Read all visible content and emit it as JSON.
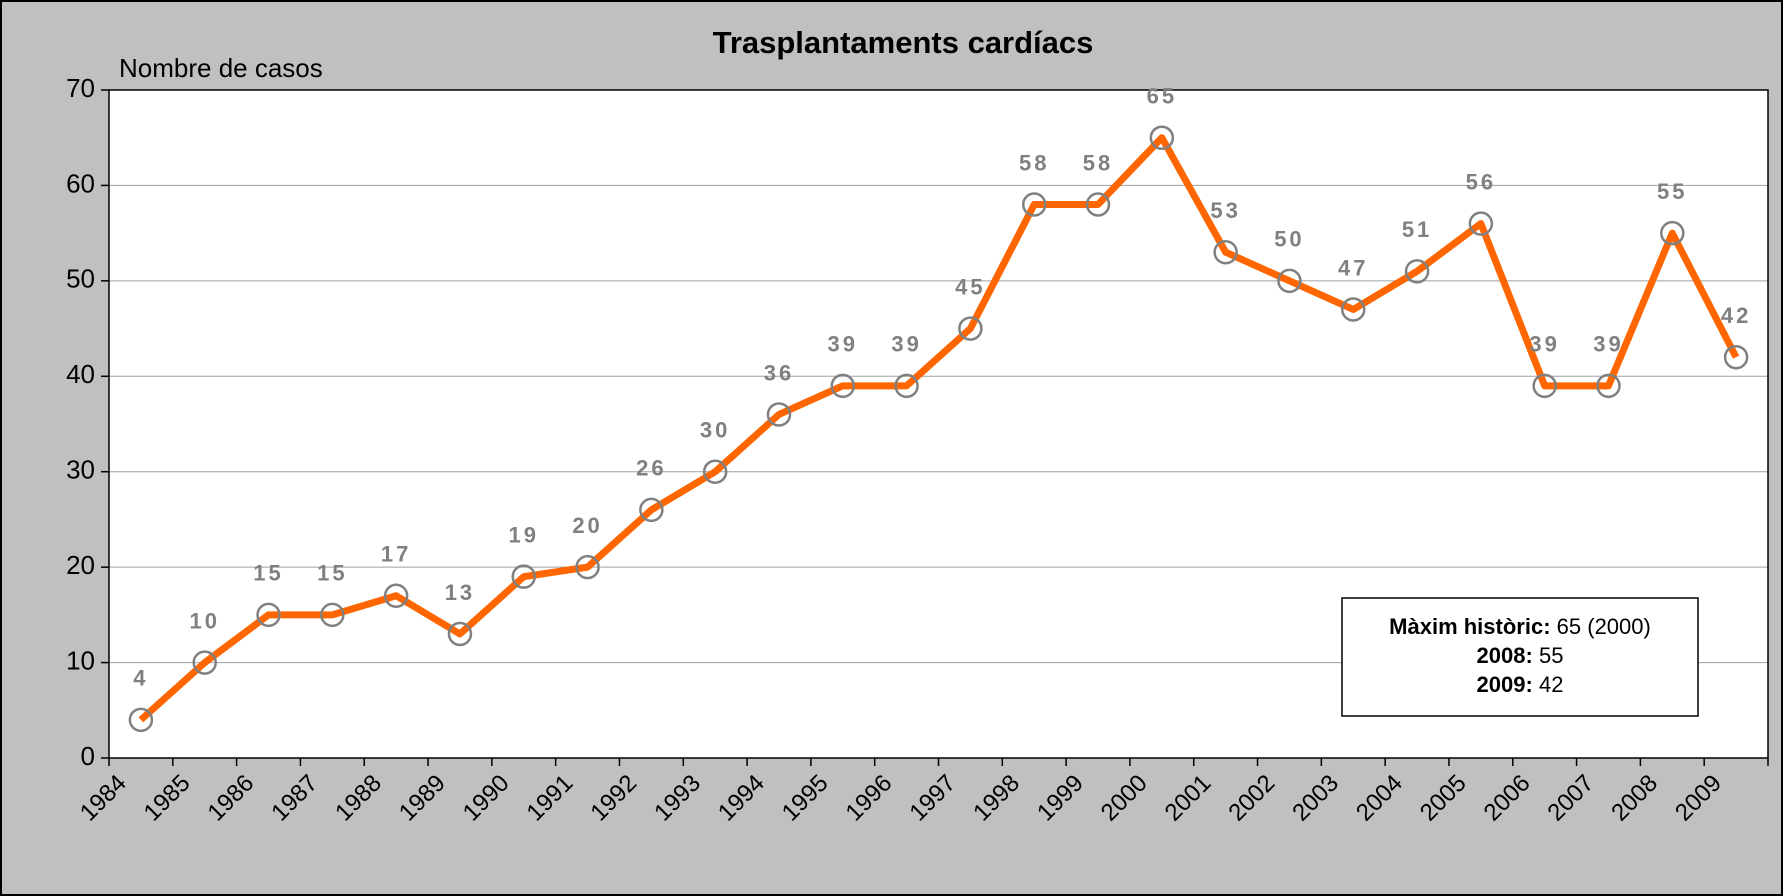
{
  "chart_data": {
    "type": "line",
    "title": "Trasplantaments cardíacs",
    "y_label": "Nombre de casos",
    "categories": [
      "1984",
      "1985",
      "1986",
      "1987",
      "1988",
      "1989",
      "1990",
      "1991",
      "1992",
      "1993",
      "1994",
      "1995",
      "1996",
      "1997",
      "1998",
      "1999",
      "2000",
      "2001",
      "2002",
      "2003",
      "2004",
      "2005",
      "2006",
      "2007",
      "2008",
      "2009"
    ],
    "values": [
      4,
      10,
      15,
      15,
      17,
      13,
      19,
      20,
      26,
      30,
      36,
      39,
      39,
      45,
      58,
      58,
      65,
      53,
      50,
      47,
      51,
      56,
      39,
      39,
      55,
      42
    ],
    "color": "#ff6600",
    "marker_color": "#808080",
    "ylim": [
      0,
      70
    ],
    "yticks": [
      0,
      10,
      20,
      30,
      40,
      50,
      60,
      70
    ],
    "grid": true,
    "annotation": [
      {
        "label": "Màxim històric:",
        "text": "65 (2000)"
      },
      {
        "label": "2008:",
        "text": "55"
      },
      {
        "label": "2009:",
        "text": "42"
      }
    ]
  }
}
